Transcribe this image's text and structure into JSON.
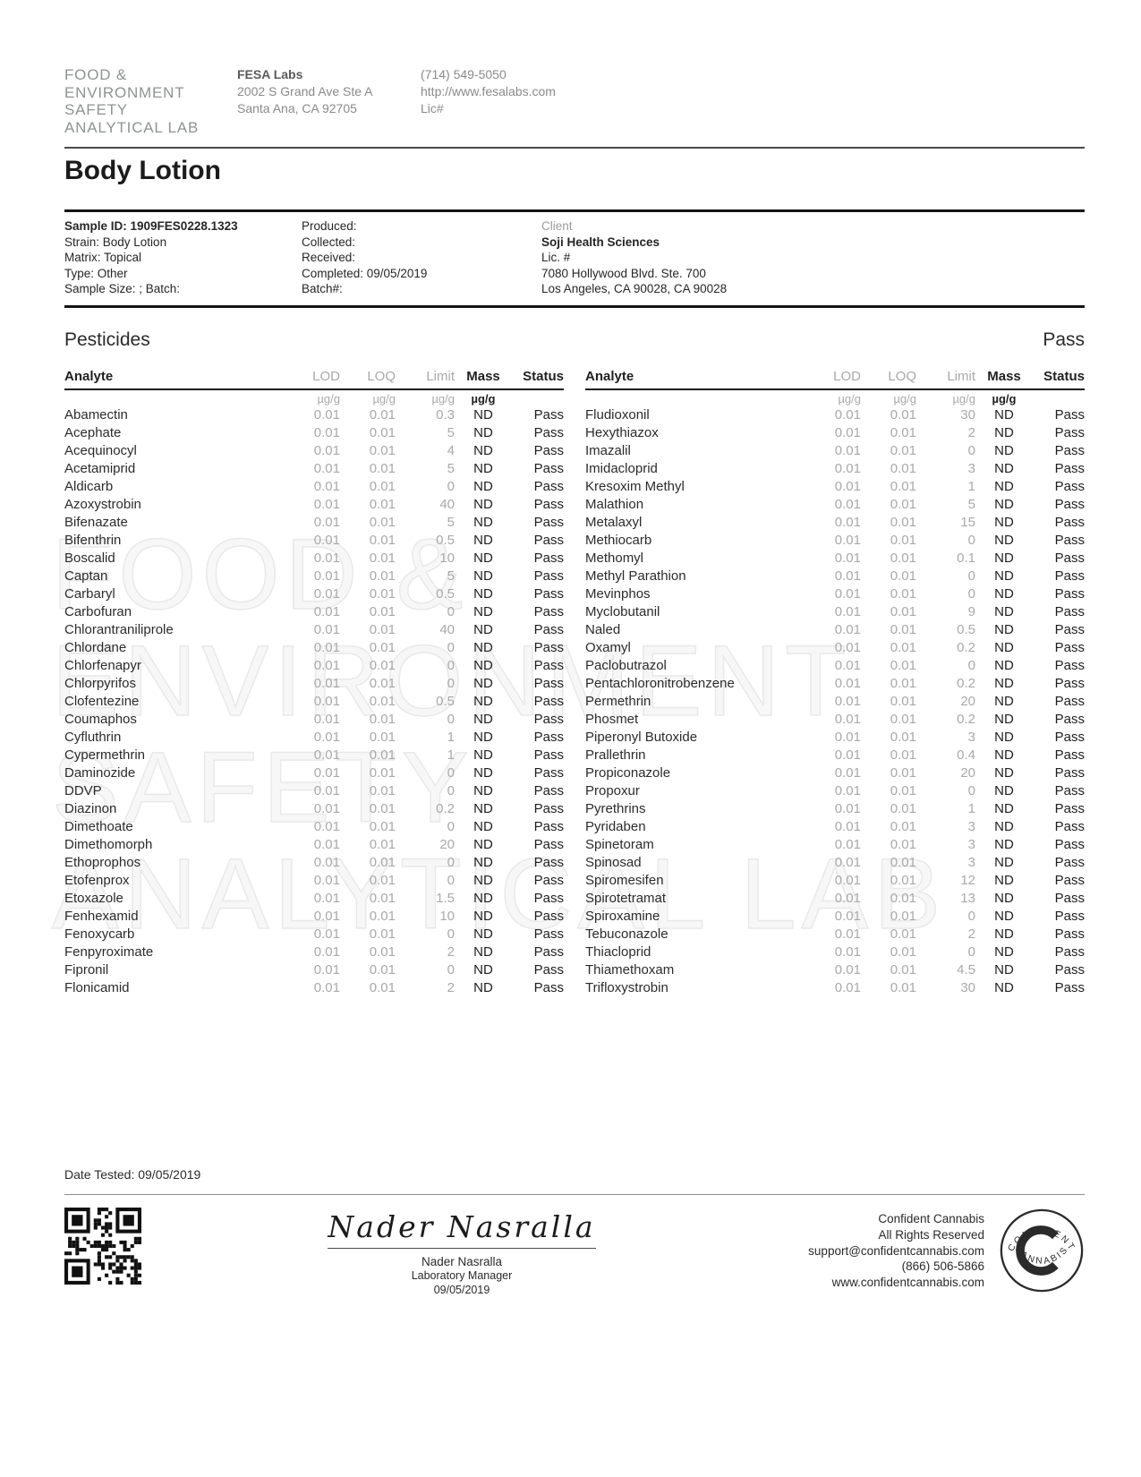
{
  "header": {
    "logo_lines": [
      "FOOD &",
      "ENVIRONMENT",
      "SAFETY",
      "ANALYTICAL LAB"
    ],
    "lab_name": "FESA Labs",
    "address_line1": "2002 S Grand Ave Ste A",
    "address_line2": "Santa Ana, CA 92705",
    "phone": "(714) 549-5050",
    "website": "http://www.fesalabs.com",
    "license": "Lic#"
  },
  "title": "Body Lotion",
  "sample": {
    "sample_id": "Sample ID: 1909FES0228.1323",
    "strain": "Strain: Body Lotion",
    "matrix": "Matrix: Topical",
    "type": "Type: Other",
    "sample_size": "Sample Size: ; Batch:",
    "produced": "Produced:",
    "collected": "Collected:",
    "received": "Received:",
    "completed": "Completed: 09/05/2019",
    "batch": "Batch#:"
  },
  "client": {
    "label": "Client",
    "name": "Soji Health  Sciences",
    "license": "Lic. #",
    "address1": "7080 Hollywood Blvd. Ste. 700",
    "address2": "Los Angeles, CA 90028, CA 90028"
  },
  "section": {
    "title": "Pesticides",
    "result": "Pass"
  },
  "table": {
    "headers": [
      "Analyte",
      "LOD",
      "LOQ",
      "Limit",
      "Mass",
      "Status"
    ],
    "units": [
      "µg/g",
      "µg/g",
      "µg/g",
      "µg/g"
    ],
    "left_rows": [
      [
        "Abamectin",
        "0.01",
        "0.01",
        "0.3",
        "ND",
        "Pass"
      ],
      [
        "Acephate",
        "0.01",
        "0.01",
        "5",
        "ND",
        "Pass"
      ],
      [
        "Acequinocyl",
        "0.01",
        "0.01",
        "4",
        "ND",
        "Pass"
      ],
      [
        "Acetamiprid",
        "0.01",
        "0.01",
        "5",
        "ND",
        "Pass"
      ],
      [
        "Aldicarb",
        "0.01",
        "0.01",
        "0",
        "ND",
        "Pass"
      ],
      [
        "Azoxystrobin",
        "0.01",
        "0.01",
        "40",
        "ND",
        "Pass"
      ],
      [
        "Bifenazate",
        "0.01",
        "0.01",
        "5",
        "ND",
        "Pass"
      ],
      [
        "Bifenthrin",
        "0.01",
        "0.01",
        "0.5",
        "ND",
        "Pass"
      ],
      [
        "Boscalid",
        "0.01",
        "0.01",
        "10",
        "ND",
        "Pass"
      ],
      [
        "Captan",
        "0.01",
        "0.01",
        "5",
        "ND",
        "Pass"
      ],
      [
        "Carbaryl",
        "0.01",
        "0.01",
        "0.5",
        "ND",
        "Pass"
      ],
      [
        "Carbofuran",
        "0.01",
        "0.01",
        "0",
        "ND",
        "Pass"
      ],
      [
        "Chlorantraniliprole",
        "0.01",
        "0.01",
        "40",
        "ND",
        "Pass"
      ],
      [
        "Chlordane",
        "0.01",
        "0.01",
        "0",
        "ND",
        "Pass"
      ],
      [
        "Chlorfenapyr",
        "0.01",
        "0.01",
        "0",
        "ND",
        "Pass"
      ],
      [
        "Chlorpyrifos",
        "0.01",
        "0.01",
        "0",
        "ND",
        "Pass"
      ],
      [
        "Clofentezine",
        "0.01",
        "0.01",
        "0.5",
        "ND",
        "Pass"
      ],
      [
        "Coumaphos",
        "0.01",
        "0.01",
        "0",
        "ND",
        "Pass"
      ],
      [
        "Cyfluthrin",
        "0.01",
        "0.01",
        "1",
        "ND",
        "Pass"
      ],
      [
        "Cypermethrin",
        "0.01",
        "0.01",
        "1",
        "ND",
        "Pass"
      ],
      [
        "Daminozide",
        "0.01",
        "0.01",
        "0",
        "ND",
        "Pass"
      ],
      [
        "DDVP",
        "0.01",
        "0.01",
        "0",
        "ND",
        "Pass"
      ],
      [
        "Diazinon",
        "0.01",
        "0.01",
        "0.2",
        "ND",
        "Pass"
      ],
      [
        "Dimethoate",
        "0.01",
        "0.01",
        "0",
        "ND",
        "Pass"
      ],
      [
        "Dimethomorph",
        "0.01",
        "0.01",
        "20",
        "ND",
        "Pass"
      ],
      [
        "Ethoprophos",
        "0.01",
        "0.01",
        "0",
        "ND",
        "Pass"
      ],
      [
        "Etofenprox",
        "0.01",
        "0.01",
        "0",
        "ND",
        "Pass"
      ],
      [
        "Etoxazole",
        "0.01",
        "0.01",
        "1.5",
        "ND",
        "Pass"
      ],
      [
        "Fenhexamid",
        "0.01",
        "0.01",
        "10",
        "ND",
        "Pass"
      ],
      [
        "Fenoxycarb",
        "0.01",
        "0.01",
        "0",
        "ND",
        "Pass"
      ],
      [
        "Fenpyroximate",
        "0.01",
        "0.01",
        "2",
        "ND",
        "Pass"
      ],
      [
        "Fipronil",
        "0.01",
        "0.01",
        "0",
        "ND",
        "Pass"
      ],
      [
        "Flonicamid",
        "0.01",
        "0.01",
        "2",
        "ND",
        "Pass"
      ]
    ],
    "right_rows": [
      [
        "Fludioxonil",
        "0.01",
        "0.01",
        "30",
        "ND",
        "Pass"
      ],
      [
        "Hexythiazox",
        "0.01",
        "0.01",
        "2",
        "ND",
        "Pass"
      ],
      [
        "Imazalil",
        "0.01",
        "0.01",
        "0",
        "ND",
        "Pass"
      ],
      [
        "Imidacloprid",
        "0.01",
        "0.01",
        "3",
        "ND",
        "Pass"
      ],
      [
        "Kresoxim Methyl",
        "0.01",
        "0.01",
        "1",
        "ND",
        "Pass"
      ],
      [
        "Malathion",
        "0.01",
        "0.01",
        "5",
        "ND",
        "Pass"
      ],
      [
        "Metalaxyl",
        "0.01",
        "0.01",
        "15",
        "ND",
        "Pass"
      ],
      [
        "Methiocarb",
        "0.01",
        "0.01",
        "0",
        "ND",
        "Pass"
      ],
      [
        "Methomyl",
        "0.01",
        "0.01",
        "0.1",
        "ND",
        "Pass"
      ],
      [
        "Methyl Parathion",
        "0.01",
        "0.01",
        "0",
        "ND",
        "Pass"
      ],
      [
        "Mevinphos",
        "0.01",
        "0.01",
        "0",
        "ND",
        "Pass"
      ],
      [
        "Myclobutanil",
        "0.01",
        "0.01",
        "9",
        "ND",
        "Pass"
      ],
      [
        "Naled",
        "0.01",
        "0.01",
        "0.5",
        "ND",
        "Pass"
      ],
      [
        "Oxamyl",
        "0.01",
        "0.01",
        "0.2",
        "ND",
        "Pass"
      ],
      [
        "Paclobutrazol",
        "0.01",
        "0.01",
        "0",
        "ND",
        "Pass"
      ],
      [
        "Pentachloronitrobenzene",
        "0.01",
        "0.01",
        "0.2",
        "ND",
        "Pass"
      ],
      [
        "Permethrin",
        "0.01",
        "0.01",
        "20",
        "ND",
        "Pass"
      ],
      [
        "Phosmet",
        "0.01",
        "0.01",
        "0.2",
        "ND",
        "Pass"
      ],
      [
        "Piperonyl Butoxide",
        "0.01",
        "0.01",
        "3",
        "ND",
        "Pass"
      ],
      [
        "Prallethrin",
        "0.01",
        "0.01",
        "0.4",
        "ND",
        "Pass"
      ],
      [
        "Propiconazole",
        "0.01",
        "0.01",
        "20",
        "ND",
        "Pass"
      ],
      [
        "Propoxur",
        "0.01",
        "0.01",
        "0",
        "ND",
        "Pass"
      ],
      [
        "Pyrethrins",
        "0.01",
        "0.01",
        "1",
        "ND",
        "Pass"
      ],
      [
        "Pyridaben",
        "0.01",
        "0.01",
        "3",
        "ND",
        "Pass"
      ],
      [
        "Spinetoram",
        "0.01",
        "0.01",
        "3",
        "ND",
        "Pass"
      ],
      [
        "Spinosad",
        "0.01",
        "0.01",
        "3",
        "ND",
        "Pass"
      ],
      [
        "Spiromesifen",
        "0.01",
        "0.01",
        "12",
        "ND",
        "Pass"
      ],
      [
        "Spirotetramat",
        "0.01",
        "0.01",
        "13",
        "ND",
        "Pass"
      ],
      [
        "Spiroxamine",
        "0.01",
        "0.01",
        "0",
        "ND",
        "Pass"
      ],
      [
        "Tebuconazole",
        "0.01",
        "0.01",
        "2",
        "ND",
        "Pass"
      ],
      [
        "Thiacloprid",
        "0.01",
        "0.01",
        "0",
        "ND",
        "Pass"
      ],
      [
        "Thiamethoxam",
        "0.01",
        "0.01",
        "4.5",
        "ND",
        "Pass"
      ],
      [
        "Trifloxystrobin",
        "0.01",
        "0.01",
        "30",
        "ND",
        "Pass"
      ]
    ]
  },
  "watermark_lines": [
    "FOOD &",
    "ENVIRONMENT",
    "SAFETY",
    "ANALYTICAL LAB"
  ],
  "footer": {
    "date_tested": "Date Tested: 09/05/2019",
    "signature_script": "Nader Nasralla",
    "signer_name": "Nader Nasralla",
    "signer_title": "Laboratory Manager",
    "signer_date": "09/05/2019",
    "cc_name": "Confident Cannabis",
    "cc_rights": "All Rights Reserved",
    "cc_email": "support@confidentcannabis.com",
    "cc_phone": "(866) 506-5866",
    "cc_web": "www.confidentcannabis.com",
    "seal_top": "CONFIDENT",
    "seal_bottom": "CANNABIS"
  }
}
